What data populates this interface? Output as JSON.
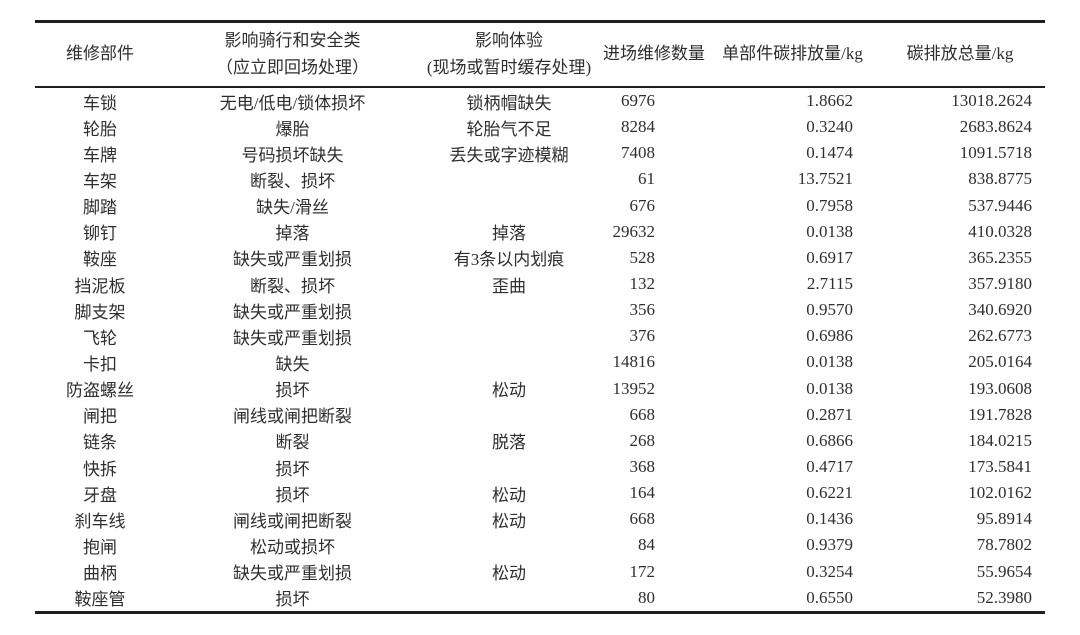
{
  "table": {
    "headers": [
      {
        "line1": "维修部件",
        "line2": ""
      },
      {
        "line1": "影响骑行和安全类",
        "line2": "（应立即回场处理）"
      },
      {
        "line1": "影响体验",
        "line2": "(现场或暂时缓存处理)"
      },
      {
        "line1": "进场维修数量",
        "line2": ""
      },
      {
        "line1": "单部件碳排放量/kg",
        "line2": ""
      },
      {
        "line1": "碳排放总量/kg",
        "line2": ""
      }
    ],
    "rows": [
      [
        "车锁",
        "无电/低电/锁体损坏",
        "锁柄帽缺失",
        "6976",
        "1.8662",
        "13018.2624"
      ],
      [
        "轮胎",
        "爆胎",
        "轮胎气不足",
        "8284",
        "0.3240",
        "2683.8624"
      ],
      [
        "车牌",
        "号码损坏缺失",
        "丢失或字迹模糊",
        "7408",
        "0.1474",
        "1091.5718"
      ],
      [
        "车架",
        "断裂、损坏",
        "",
        "61",
        "13.7521",
        "838.8775"
      ],
      [
        "脚踏",
        "缺失/滑丝",
        "",
        "676",
        "0.7958",
        "537.9446"
      ],
      [
        "铆钉",
        "掉落",
        "掉落",
        "29632",
        "0.0138",
        "410.0328"
      ],
      [
        "鞍座",
        "缺失或严重划损",
        "有3条以内划痕",
        "528",
        "0.6917",
        "365.2355"
      ],
      [
        "挡泥板",
        "断裂、损坏",
        "歪曲",
        "132",
        "2.7115",
        "357.9180"
      ],
      [
        "脚支架",
        "缺失或严重划损",
        "",
        "356",
        "0.9570",
        "340.6920"
      ],
      [
        "飞轮",
        "缺失或严重划损",
        "",
        "376",
        "0.6986",
        "262.6773"
      ],
      [
        "卡扣",
        "缺失",
        "",
        "14816",
        "0.0138",
        "205.0164"
      ],
      [
        "防盗螺丝",
        "损坏",
        "松动",
        "13952",
        "0.0138",
        "193.0608"
      ],
      [
        "闸把",
        "闸线或闸把断裂",
        "",
        "668",
        "0.2871",
        "191.7828"
      ],
      [
        "链条",
        "断裂",
        "脱落",
        "268",
        "0.6866",
        "184.0215"
      ],
      [
        "快拆",
        "损坏",
        "",
        "368",
        "0.4717",
        "173.5841"
      ],
      [
        "牙盘",
        "损坏",
        "松动",
        "164",
        "0.6221",
        "102.0162"
      ],
      [
        "刹车线",
        "闸线或闸把断裂",
        "松动",
        "668",
        "0.1436",
        "95.8914"
      ],
      [
        "抱闸",
        "松动或损坏",
        "",
        "84",
        "0.9379",
        "78.7802"
      ],
      [
        "曲柄",
        "缺失或严重划损",
        "松动",
        "172",
        "0.3254",
        "55.9654"
      ],
      [
        "鞍座管",
        "损坏",
        "",
        "80",
        "0.6550",
        "52.3980"
      ]
    ]
  }
}
